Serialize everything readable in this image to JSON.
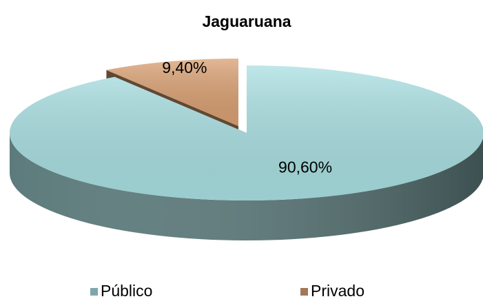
{
  "chart_data": {
    "type": "pie",
    "title": "Jaguaruana",
    "categories": [
      "Público",
      "Privado"
    ],
    "values": [
      90.6,
      9.4
    ],
    "value_labels": [
      "90,60%",
      "9,40%"
    ],
    "colors": [
      "#a9dfe2",
      "#d9a072"
    ],
    "legend": "bottom"
  }
}
